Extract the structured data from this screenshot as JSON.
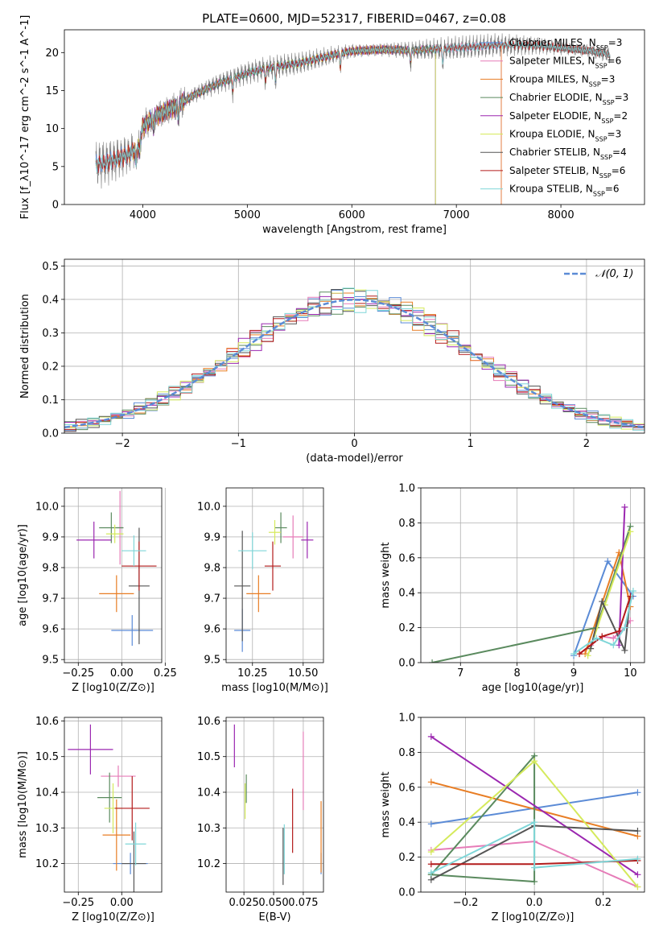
{
  "figure": {
    "title": "PLATE=0600, MJD=52317, FIBERID=0467, z=0.08"
  },
  "colors": {
    "Chabrier MILES": "#5b8bd6",
    "Salpeter MILES": "#e67cb8",
    "Kroupa MILES": "#e87d24",
    "Chabrier ELODIE": "#5a8a5e",
    "Salpeter ELODIE": "#9b27b0",
    "Kroupa ELODIE": "#d5ea5c",
    "Chabrier STELIB": "#555555",
    "Salpeter STELIB": "#b31b1b",
    "Kroupa STELIB": "#7fd6d8",
    "normal": "#5b8bd6",
    "data": "#808080"
  },
  "chart_data": [
    {
      "type": "line",
      "id": "spectrum",
      "xlabel": "wavelength [Angstrom, rest frame]",
      "ylabel": "Flux [f_λ10^-17 erg cm^-2 s^-1 A^-1]",
      "xlim": [
        3250,
        8800
      ],
      "ylim": [
        0,
        23
      ],
      "xticks": [
        4000,
        5000,
        6000,
        7000,
        8000
      ],
      "yticks": [
        0,
        5,
        10,
        15,
        20
      ],
      "legend_position": "upper-right",
      "legend": [
        {
          "name": "Chabrier MILES",
          "nssp": "3"
        },
        {
          "name": "Salpeter MILES",
          "nssp": "6"
        },
        {
          "name": "Kroupa MILES",
          "nssp": "3"
        },
        {
          "name": "Chabrier ELODIE",
          "nssp": "3"
        },
        {
          "name": "Salpeter ELODIE",
          "nssp": "2"
        },
        {
          "name": "Kroupa ELODIE",
          "nssp": "3"
        },
        {
          "name": "Chabrier STELIB",
          "nssp": "4"
        },
        {
          "name": "Salpeter STELIB",
          "nssp": "6"
        },
        {
          "name": "Kroupa STELIB",
          "nssp": "6"
        }
      ],
      "continuum": [
        [
          3400,
          5.0
        ],
        [
          3650,
          5.5
        ],
        [
          3850,
          6.5
        ],
        [
          3950,
          7.5
        ],
        [
          4000,
          10.2
        ],
        [
          4100,
          11.5
        ],
        [
          4300,
          12.8
        ],
        [
          4500,
          14.5
        ],
        [
          4700,
          15.8
        ],
        [
          5000,
          17.3
        ],
        [
          5200,
          18.0
        ],
        [
          5500,
          18.6
        ],
        [
          5800,
          19.6
        ],
        [
          6000,
          20.2
        ],
        [
          6300,
          20.4
        ],
        [
          6600,
          20.3
        ],
        [
          7000,
          20.6
        ],
        [
          7400,
          21.0
        ],
        [
          7800,
          20.9
        ],
        [
          8300,
          20.2
        ],
        [
          8500,
          19.6
        ]
      ],
      "model_ranges": [
        {
          "series": "Chabrier MILES",
          "x": [
            3500,
            7430
          ]
        },
        {
          "series": "Salpeter MILES",
          "x": [
            3500,
            7430
          ]
        },
        {
          "series": "Kroupa MILES",
          "x": [
            3500,
            7430
          ]
        },
        {
          "series": "Chabrier ELODIE",
          "x": [
            3900,
            6800
          ]
        },
        {
          "series": "Salpeter ELODIE",
          "x": [
            3900,
            6800
          ]
        },
        {
          "series": "Kroupa ELODIE",
          "x": [
            3900,
            6800
          ]
        },
        {
          "series": "Chabrier STELIB",
          "x": [
            3200,
            9300
          ]
        },
        {
          "series": "Salpeter STELIB",
          "x": [
            3200,
            9300
          ]
        },
        {
          "series": "Kroupa STELIB",
          "x": [
            3200,
            9300
          ]
        }
      ]
    },
    {
      "type": "line",
      "id": "residuals",
      "xlabel": "(data-model)/error",
      "ylabel": "Normed distribution",
      "xlim": [
        -2.5,
        2.5
      ],
      "ylim": [
        0,
        0.52
      ],
      "xticks": [
        -2,
        -1,
        0,
        1,
        2
      ],
      "yticks": [
        0.0,
        0.1,
        0.2,
        0.3,
        0.4,
        0.5
      ],
      "bin_width": 0.1,
      "legend_position": "upper-right",
      "legend": [
        {
          "name": "𝒩(0, 1)"
        }
      ]
    },
    {
      "type": "scatter",
      "id": "age-vs-Z",
      "xlabel": "Z [log10(Z/Z⊙)]",
      "ylabel": "age  [log10(age/yr)]",
      "xlim": [
        -0.33,
        0.23
      ],
      "ylim": [
        9.49,
        10.06
      ],
      "xticks": [
        -0.25,
        0.0,
        0.25
      ],
      "xtick_labels": [
        "−0.25",
        "0.00",
        "0.25"
      ],
      "yticks": [
        9.5,
        9.6,
        9.7,
        9.8,
        9.9,
        10.0
      ],
      "ytick_labels": [
        "9.5",
        "9.6",
        "9.7",
        "9.8",
        "9.9",
        "10.0"
      ],
      "points": [
        {
          "series": "Chabrier MILES",
          "x": 0.06,
          "xerr": 0.12,
          "y": 9.595,
          "yerr": 0.05
        },
        {
          "series": "Salpeter MILES",
          "x": -0.01,
          "xerr": 0.02,
          "y": 9.93,
          "yerr": 0.12
        },
        {
          "series": "Kroupa MILES",
          "x": -0.03,
          "xerr": 0.1,
          "y": 9.715,
          "yerr": 0.06
        },
        {
          "series": "Chabrier ELODIE",
          "x": -0.06,
          "xerr": 0.07,
          "y": 9.93,
          "yerr": 0.05
        },
        {
          "series": "Salpeter ELODIE",
          "x": -0.16,
          "xerr": 0.1,
          "y": 9.89,
          "yerr": 0.06
        },
        {
          "series": "Kroupa ELODIE",
          "x": -0.04,
          "xerr": 0.05,
          "y": 9.91,
          "yerr": 0.03
        },
        {
          "series": "Chabrier STELIB",
          "x": 0.1,
          "xerr": 0.06,
          "y": 9.74,
          "yerr": 0.19
        },
        {
          "series": "Salpeter STELIB",
          "x": 0.1,
          "xerr": 0.1,
          "y": 9.805,
          "yerr": 0.08
        },
        {
          "series": "Kroupa STELIB",
          "x": 0.07,
          "xerr": 0.07,
          "y": 9.855,
          "yerr": 0.05
        }
      ]
    },
    {
      "type": "scatter",
      "id": "age-vs-mass",
      "xlabel": "mass [log10(M/M⊙)]",
      "xlim": [
        10.12,
        10.6
      ],
      "ylim": [
        9.49,
        10.06
      ],
      "xticks": [
        10.25,
        10.5
      ],
      "xtick_labels": [
        "10.25",
        "10.50"
      ],
      "yticks": [
        9.5,
        9.6,
        9.7,
        9.8,
        9.9,
        10.0
      ],
      "ytick_labels": [
        "9.5",
        "9.6",
        "9.7",
        "9.8",
        "9.9",
        "10.0"
      ],
      "points": [
        {
          "series": "Chabrier MILES",
          "x": 10.2,
          "xerr": 0.04,
          "y": 9.595,
          "yerr": 0.07
        },
        {
          "series": "Salpeter MILES",
          "x": 10.45,
          "xerr": 0.05,
          "y": 9.9,
          "yerr": 0.07
        },
        {
          "series": "Kroupa MILES",
          "x": 10.28,
          "xerr": 0.06,
          "y": 9.715,
          "yerr": 0.06
        },
        {
          "series": "Chabrier ELODIE",
          "x": 10.39,
          "xerr": 0.03,
          "y": 9.93,
          "yerr": 0.05
        },
        {
          "series": "Salpeter ELODIE",
          "x": 10.52,
          "xerr": 0.03,
          "y": 9.89,
          "yerr": 0.06
        },
        {
          "series": "Kroupa ELODIE",
          "x": 10.36,
          "xerr": 0.03,
          "y": 9.915,
          "yerr": 0.04
        },
        {
          "series": "Chabrier STELIB",
          "x": 10.2,
          "xerr": 0.04,
          "y": 9.74,
          "yerr": 0.18
        },
        {
          "series": "Salpeter STELIB",
          "x": 10.35,
          "xerr": 0.04,
          "y": 9.805,
          "yerr": 0.08
        },
        {
          "series": "Kroupa STELIB",
          "x": 10.25,
          "xerr": 0.07,
          "y": 9.855,
          "yerr": 0.06
        }
      ]
    },
    {
      "type": "line",
      "id": "mass-weight-vs-age",
      "xlabel": "age  [log10(age/yr)]",
      "ylabel": "mass weight",
      "xlim": [
        6.3,
        10.25
      ],
      "ylim": [
        0,
        1.0
      ],
      "xticks": [
        7,
        8,
        9,
        10
      ],
      "yticks": [
        0.0,
        0.2,
        0.4,
        0.6,
        0.8,
        1.0
      ],
      "series": [
        {
          "name": "Chabrier MILES",
          "points": [
            [
              9.0,
              0.04
            ],
            [
              9.6,
              0.58
            ],
            [
              10.05,
              0.38
            ]
          ]
        },
        {
          "name": "Salpeter MILES",
          "points": [
            [
              9.1,
              0.05
            ],
            [
              9.3,
              0.1
            ],
            [
              9.5,
              0.15
            ],
            [
              9.7,
              0.14
            ],
            [
              9.9,
              0.2
            ],
            [
              10.0,
              0.24
            ]
          ]
        },
        {
          "name": "Kroupa MILES",
          "points": [
            [
              9.2,
              0.05
            ],
            [
              9.8,
              0.63
            ],
            [
              10.0,
              0.32
            ]
          ]
        },
        {
          "name": "Chabrier ELODIE",
          "points": [
            [
              6.5,
              0.0
            ],
            [
              9.4,
              0.2
            ],
            [
              10.0,
              0.78
            ]
          ]
        },
        {
          "name": "Salpeter ELODIE",
          "points": [
            [
              9.8,
              0.1
            ],
            [
              9.9,
              0.89
            ]
          ]
        },
        {
          "name": "Kroupa ELODIE",
          "points": [
            [
              9.25,
              0.04
            ],
            [
              9.55,
              0.33
            ],
            [
              10.0,
              0.75
            ]
          ]
        },
        {
          "name": "Chabrier STELIB",
          "points": [
            [
              9.3,
              0.08
            ],
            [
              9.5,
              0.35
            ],
            [
              9.9,
              0.07
            ],
            [
              10.0,
              0.38
            ]
          ]
        },
        {
          "name": "Salpeter STELIB",
          "points": [
            [
              9.1,
              0.05
            ],
            [
              9.5,
              0.15
            ],
            [
              9.8,
              0.18
            ],
            [
              10.0,
              0.38
            ]
          ]
        },
        {
          "name": "Kroupa STELIB",
          "points": [
            [
              9.0,
              0.05
            ],
            [
              9.4,
              0.14
            ],
            [
              9.7,
              0.1
            ],
            [
              9.9,
              0.2
            ],
            [
              10.05,
              0.41
            ]
          ]
        }
      ]
    },
    {
      "type": "scatter",
      "id": "mass-vs-Z",
      "xlabel": "Z [log10(Z/Z⊙)]",
      "ylabel": "mass [log10(M/M⊙)]",
      "xlim": [
        -0.33,
        0.23
      ],
      "ylim": [
        10.12,
        10.61
      ],
      "xticks": [
        -0.25,
        0.0
      ],
      "xtick_labels": [
        "−0.25",
        "0.00"
      ],
      "yticks": [
        10.2,
        10.3,
        10.4,
        10.5,
        10.6
      ],
      "ytick_labels": [
        "10.2",
        "10.3",
        "10.4",
        "10.5",
        "10.6"
      ],
      "points": [
        {
          "series": "Chabrier MILES",
          "x": 0.05,
          "xerr": 0.1,
          "y": 10.2,
          "yerr": 0.03
        },
        {
          "series": "Salpeter MILES",
          "x": -0.02,
          "xerr": 0.1,
          "y": 10.445,
          "yerr": 0.03
        },
        {
          "series": "Kroupa MILES",
          "x": -0.03,
          "xerr": 0.08,
          "y": 10.28,
          "yerr": 0.1
        },
        {
          "series": "Chabrier ELODIE",
          "x": -0.07,
          "xerr": 0.07,
          "y": 10.385,
          "yerr": 0.07
        },
        {
          "series": "Salpeter ELODIE",
          "x": -0.18,
          "xerr": 0.13,
          "y": 10.52,
          "yerr": 0.07
        },
        {
          "series": "Kroupa ELODIE",
          "x": -0.05,
          "xerr": 0.05,
          "y": 10.355,
          "yerr": 0.07
        },
        {
          "series": "Chabrier STELIB",
          "x": 0.07,
          "xerr": 0.07,
          "y": 10.2,
          "yerr": 0.09
        },
        {
          "series": "Salpeter STELIB",
          "x": 0.06,
          "xerr": 0.1,
          "y": 10.355,
          "yerr": 0.09
        },
        {
          "series": "Kroupa STELIB",
          "x": 0.08,
          "xerr": 0.06,
          "y": 10.255,
          "yerr": 0.06
        }
      ]
    },
    {
      "type": "scatter",
      "id": "mass-vs-ebv",
      "xlabel": "E(B-V)",
      "xlim": [
        0.01,
        0.092
      ],
      "ylim": [
        10.12,
        10.61
      ],
      "xticks": [
        0.025,
        0.05,
        0.075
      ],
      "xtick_labels": [
        "0.025",
        "0.050",
        "0.075"
      ],
      "yticks": [
        10.2,
        10.3,
        10.4,
        10.5,
        10.6
      ],
      "ytick_labels": [
        "10.2",
        "10.3",
        "10.4",
        "10.5",
        "10.6"
      ],
      "points": [
        {
          "series": "Chabrier MILES",
          "x": 0.09,
          "y": 10.2,
          "yerr": 0.03
        },
        {
          "series": "Salpeter MILES",
          "x": 0.075,
          "y": 10.46,
          "yerr": 0.11
        },
        {
          "series": "Kroupa MILES",
          "x": 0.09,
          "y": 10.275,
          "yerr": 0.1
        },
        {
          "series": "Chabrier ELODIE",
          "x": 0.027,
          "y": 10.41,
          "yerr": 0.04
        },
        {
          "series": "Salpeter ELODIE",
          "x": 0.017,
          "y": 10.53,
          "yerr": 0.06
        },
        {
          "series": "Kroupa ELODIE",
          "x": 0.026,
          "y": 10.375,
          "yerr": 0.05
        },
        {
          "series": "Chabrier STELIB",
          "x": 0.058,
          "y": 10.22,
          "yerr": 0.08
        },
        {
          "series": "Salpeter STELIB",
          "x": 0.066,
          "y": 10.32,
          "yerr": 0.09
        },
        {
          "series": "Kroupa STELIB",
          "x": 0.059,
          "y": 10.24,
          "yerr": 0.07
        }
      ]
    },
    {
      "type": "line",
      "id": "mass-weight-vs-Z",
      "xlabel": "Z [log10(Z/Z⊙)]",
      "ylabel": "mass weight",
      "xlim": [
        -0.33,
        0.32
      ],
      "ylim": [
        0,
        1.0
      ],
      "xticks": [
        -0.2,
        0.0,
        0.2
      ],
      "xtick_labels": [
        "−0.2",
        "0.0",
        "0.2"
      ],
      "yticks": [
        0.0,
        0.2,
        0.4,
        0.6,
        0.8,
        1.0
      ],
      "series": [
        {
          "name": "Chabrier MILES",
          "points": [
            [
              -0.3,
              0.39
            ],
            [
              0.3,
              0.57
            ]
          ]
        },
        {
          "name": "Salpeter MILES",
          "points": [
            [
              -0.3,
              0.24
            ],
            [
              0.0,
              0.29
            ],
            [
              0.3,
              0.03
            ]
          ]
        },
        {
          "name": "Kroupa MILES",
          "points": [
            [
              -0.3,
              0.63
            ],
            [
              0.3,
              0.32
            ]
          ]
        },
        {
          "name": "Chabrier ELODIE",
          "points": [
            [
              -0.3,
              0.1
            ],
            [
              0.0,
              0.78
            ],
            [
              0.0,
              0.06
            ],
            [
              -0.3,
              0.1
            ]
          ]
        },
        {
          "name": "Salpeter ELODIE",
          "points": [
            [
              -0.3,
              0.89
            ],
            [
              0.3,
              0.1
            ]
          ]
        },
        {
          "name": "Kroupa ELODIE",
          "points": [
            [
              -0.3,
              0.23
            ],
            [
              0.0,
              0.75
            ],
            [
              0.3,
              0.03
            ]
          ]
        },
        {
          "name": "Chabrier STELIB",
          "points": [
            [
              -0.3,
              0.07
            ],
            [
              0.0,
              0.38
            ],
            [
              0.3,
              0.35
            ]
          ]
        },
        {
          "name": "Salpeter STELIB",
          "points": [
            [
              -0.3,
              0.16
            ],
            [
              0.0,
              0.16
            ],
            [
              0.3,
              0.18
            ]
          ]
        },
        {
          "name": "Kroupa STELIB",
          "points": [
            [
              -0.3,
              0.11
            ],
            [
              0.0,
              0.4
            ],
            [
              0.0,
              0.14
            ],
            [
              0.3,
              0.19
            ]
          ]
        }
      ]
    }
  ]
}
